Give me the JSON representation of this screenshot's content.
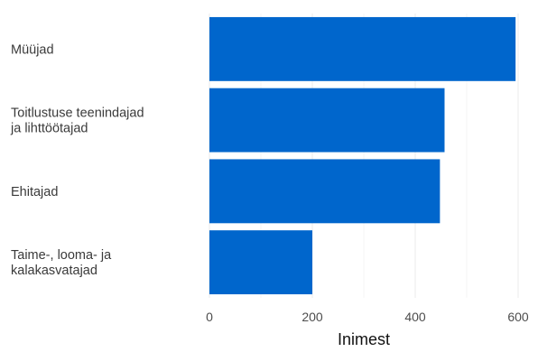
{
  "chart_data": {
    "type": "bar",
    "orientation": "horizontal",
    "categories": [
      [
        "Müüjad"
      ],
      [
        "Toitlustuse teenindajad",
        "ja lihttöötajad"
      ],
      [
        "Ehitajad"
      ],
      [
        "Taime-, looma- ja",
        "kalakasvatajad"
      ]
    ],
    "values": [
      595,
      457,
      448,
      200
    ],
    "title": "",
    "xlabel": "Inimest",
    "ylabel": "",
    "xlim": [
      0,
      600
    ],
    "xticks": [
      0,
      200,
      400,
      600
    ],
    "grid": true,
    "legend": "none",
    "bar_color": "#0066cc",
    "grid_color": "#ebebeb"
  }
}
